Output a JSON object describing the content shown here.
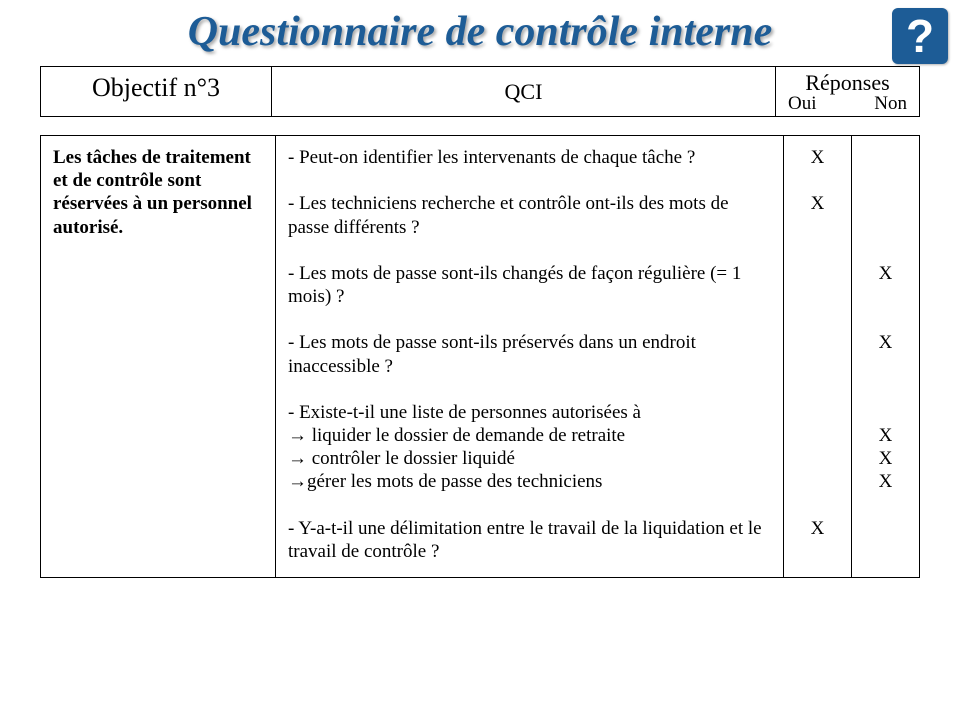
{
  "help_glyph": "?",
  "title": "Questionnaire de contrôle interne",
  "header": {
    "objectif": "Objectif n°3",
    "qci": "QCI",
    "reponses": "Réponses",
    "oui": "Oui",
    "non": "Non"
  },
  "left_text": "Les tâches de traitement et de contrôle sont réservées à un personnel autorisé.",
  "questions": [
    {
      "text": "- Peut-on identifier les intervenants de chaque tâche ?",
      "oui": "X",
      "non": ""
    },
    {
      "text": "",
      "oui": "",
      "non": ""
    },
    {
      "text": "- Les techniciens recherche et contrôle ont-ils des mots de passe différents ?",
      "oui": "X",
      "non": ""
    },
    {
      "text": "",
      "oui": "",
      "non": ""
    },
    {
      "text": "- Les mots de passe sont-ils changés de façon régulière (= 1 mois) ?",
      "oui": "",
      "non": "X"
    },
    {
      "text": "",
      "oui": "",
      "non": ""
    },
    {
      "text": "- Les mots de passe sont-ils préservés dans un endroit inaccessible ?",
      "oui": "",
      "non": "X"
    },
    {
      "text": "",
      "oui": "",
      "non": ""
    },
    {
      "text": "- Existe-t-il une liste de personnes autorisées à",
      "oui": "",
      "non": ""
    },
    {
      "text": "→ liquider le dossier de demande de retraite",
      "oui": "",
      "non": "X",
      "arrow": true
    },
    {
      "text": "→ contrôler le dossier liquidé",
      "oui": "",
      "non": "X",
      "arrow": true
    },
    {
      "text": "→gérer les mots de passe des techniciens",
      "oui": "",
      "non": "X",
      "arrow": true
    },
    {
      "text": "",
      "oui": "",
      "non": ""
    },
    {
      "text": "- Y-a-t-il une délimitation entre le travail de la liquidation et le travail de contrôle ?",
      "oui": "X",
      "non": ""
    }
  ]
}
